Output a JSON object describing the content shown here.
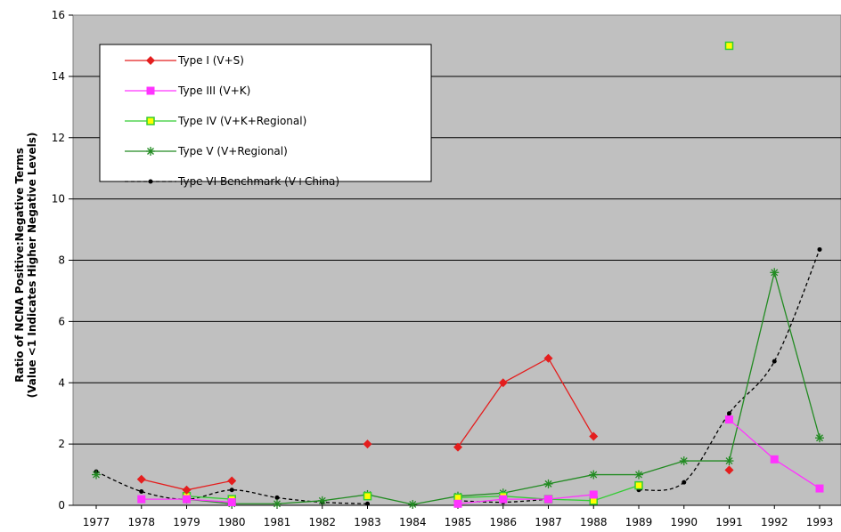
{
  "chart_data": {
    "type": "line",
    "title": "",
    "xlabel": "",
    "ylabel": [
      "Ratio of NCNA Positive:Negative Terms",
      "(Value <1 Indicates Higher Negative Levels)"
    ],
    "ylim": [
      0,
      16
    ],
    "yticks": [
      0,
      2,
      4,
      6,
      8,
      10,
      12,
      14,
      16
    ],
    "categories": [
      "1977",
      "1978",
      "1979",
      "1980",
      "1981",
      "1982",
      "1983",
      "1984",
      "1985",
      "1986",
      "1987",
      "1988",
      "1989",
      "1990",
      "1991",
      "1992",
      "1993"
    ],
    "grid": "horizontal",
    "legend_position": "top-left",
    "series": [
      {
        "name": "Type I (V+S)",
        "color": "#e41e1e",
        "marker": "diamond",
        "line": "solid",
        "points": [
          [
            1978,
            0.85
          ],
          [
            1979,
            0.5
          ],
          [
            1980,
            0.8
          ],
          [
            null,
            null
          ],
          [
            1983,
            2.0
          ],
          [
            null,
            null
          ],
          [
            1985,
            1.9
          ],
          [
            1986,
            4.0
          ],
          [
            1987,
            4.8
          ],
          [
            1988,
            2.25
          ],
          [
            null,
            null
          ],
          [
            1991,
            1.15
          ]
        ]
      },
      {
        "name": "Type III (V+K)",
        "color": "#ff33ff",
        "marker": "square",
        "line": "solid",
        "points": [
          [
            1978,
            0.2
          ],
          [
            1979,
            0.2
          ],
          [
            1980,
            0.1
          ],
          [
            null,
            null
          ],
          [
            1985,
            0.05
          ],
          [
            1986,
            0.2
          ],
          [
            1987,
            0.2
          ],
          [
            1988,
            0.35
          ],
          [
            null,
            null
          ],
          [
            1991,
            2.8
          ],
          [
            1992,
            1.5
          ],
          [
            1993,
            0.55
          ]
        ]
      },
      {
        "name": "Type IV (V+K+Regional)",
        "color": "#33cc33",
        "marker": "square-yellow",
        "line": "solid",
        "points": [
          [
            1979,
            0.3
          ],
          [
            1980,
            0.2
          ],
          [
            null,
            null
          ],
          [
            1983,
            0.3
          ],
          [
            null,
            null
          ],
          [
            1985,
            0.25
          ],
          [
            1986,
            0.3
          ],
          [
            1987,
            0.2
          ],
          [
            1988,
            0.15
          ],
          [
            1989,
            0.65
          ],
          [
            null,
            null
          ],
          [
            1991,
            15.0
          ]
        ]
      },
      {
        "name": "Type V (V+Regional)",
        "color": "#228b22",
        "marker": "asterisk",
        "line": "solid",
        "points": [
          [
            1977,
            1.0
          ],
          [
            1978,
            null
          ],
          [
            1979,
            0.2
          ],
          [
            1980,
            0.05
          ],
          [
            1981,
            0.05
          ],
          [
            1982,
            0.15
          ],
          [
            1983,
            0.35
          ],
          [
            1984,
            0.03
          ],
          [
            1985,
            0.3
          ],
          [
            1986,
            0.4
          ],
          [
            1987,
            0.7
          ],
          [
            1988,
            1.0
          ],
          [
            1989,
            1.0
          ],
          [
            1990,
            1.45
          ],
          [
            1991,
            1.45
          ],
          [
            1992,
            7.6
          ],
          [
            1993,
            2.2
          ]
        ]
      },
      {
        "name": "Type VI Benchmark (V+China)",
        "color": "#000000",
        "marker": "dot",
        "line": "dashed",
        "points": [
          [
            1977,
            1.1
          ],
          [
            1978,
            0.45
          ],
          [
            1979,
            0.2
          ],
          [
            1980,
            0.5
          ],
          [
            1981,
            0.25
          ],
          [
            1982,
            0.1
          ],
          [
            1983,
            0.05
          ],
          [
            1984,
            null
          ],
          [
            1985,
            0.15
          ],
          [
            1986,
            0.1
          ],
          [
            1987,
            0.2
          ],
          [
            1988,
            null
          ],
          [
            1989,
            0.5
          ],
          [
            1990,
            0.75
          ],
          [
            1991,
            3.0
          ],
          [
            1992,
            4.7
          ],
          [
            1993,
            8.35
          ]
        ]
      }
    ]
  }
}
